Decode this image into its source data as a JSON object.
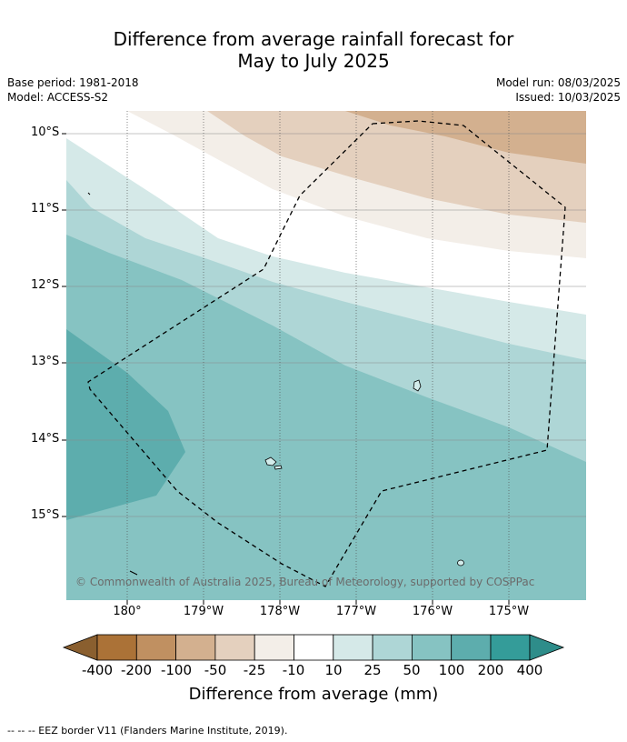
{
  "header": {
    "title_line1": "Difference from average rainfall forecast for",
    "title_line2": "May to July 2025",
    "base_period": "Base period: 1981-2018",
    "model": "Model: ACCESS-S2",
    "model_run": "Model run: 08/03/2025",
    "issued": "Issued: 10/03/2025"
  },
  "map": {
    "lat_labels": [
      "10°S",
      "11°S",
      "12°S",
      "13°S",
      "14°S",
      "15°S"
    ],
    "lon_labels": [
      "180°",
      "179°W",
      "178°W",
      "177°W",
      "176°W",
      "175°W"
    ],
    "copyright": "© Commonwealth of Australia 2025, Bureau of Meteorology, supported by COSPPac",
    "features": [
      "rainfall-anomaly-bands",
      "eez-border",
      "islands"
    ]
  },
  "colorbar": {
    "labels": [
      "-400",
      "-200",
      "-100",
      "-50",
      "-25",
      "-10",
      "10",
      "25",
      "50",
      "100",
      "200",
      "400"
    ],
    "colors": [
      "#ab7237",
      "#c09061",
      "#d3b08f",
      "#e4d0be",
      "#f3eee8",
      "#ffffff",
      "#d5e9e8",
      "#aed6d6",
      "#86c3c2",
      "#5dadad",
      "#349c99"
    ],
    "extend_low_color": "#8a5f2f",
    "extend_high_color": "#2e8d8a",
    "title": "Difference from average (mm)"
  },
  "footer": {
    "eez_legend": "--  --  -- EEZ border V11 (Flanders Marine Institute, 2019)."
  }
}
